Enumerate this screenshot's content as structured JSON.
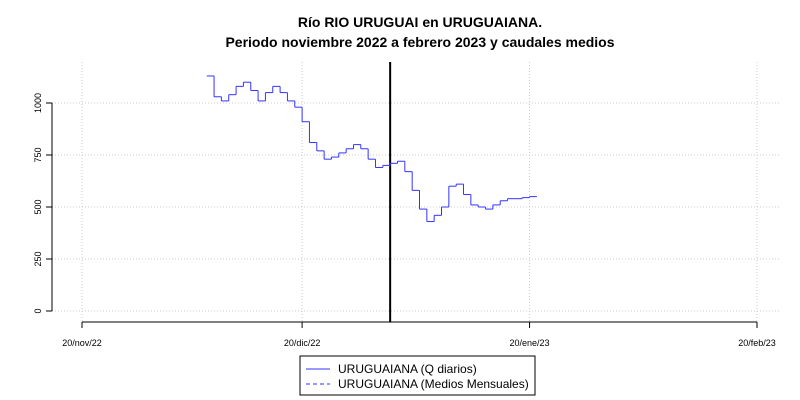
{
  "chart_data": {
    "type": "line",
    "title": "Río RIO URUGUAI en URUGUAIANA.",
    "subtitle": "Periodo noviembre 2022 a febrero 2023 y caudales medios",
    "xlabel": "",
    "ylabel": "",
    "xlim": [
      "2022-11-20",
      "2023-02-20"
    ],
    "ylim": [
      0,
      1150
    ],
    "x_ticks": [
      "20/nov/22",
      "20/dic/22",
      "20/ene/23",
      "20/feb/23"
    ],
    "x_tick_dates": [
      "2022-11-20",
      "2022-12-20",
      "2023-01-20",
      "2023-02-20"
    ],
    "y_ticks": [
      0,
      250,
      500,
      750,
      1000
    ],
    "grid": true,
    "legend_position": "bottom",
    "vline_date": "2023-01-01",
    "colors": {
      "daily": "#3333ff",
      "monthly": "#3333ff",
      "vline": "#000000"
    },
    "series": [
      {
        "name": "URUGUAIANA (Q diarios)",
        "style": "step",
        "x": [
          "2022-12-07",
          "2022-12-08",
          "2022-12-09",
          "2022-12-10",
          "2022-12-11",
          "2022-12-12",
          "2022-12-13",
          "2022-12-14",
          "2022-12-15",
          "2022-12-16",
          "2022-12-17",
          "2022-12-18",
          "2022-12-19",
          "2022-12-20",
          "2022-12-21",
          "2022-12-22",
          "2022-12-23",
          "2022-12-24",
          "2022-12-25",
          "2022-12-26",
          "2022-12-27",
          "2022-12-28",
          "2022-12-29",
          "2022-12-30",
          "2022-12-31",
          "2023-01-01",
          "2023-01-02",
          "2023-01-03",
          "2023-01-04",
          "2023-01-05",
          "2023-01-06",
          "2023-01-07",
          "2023-01-08",
          "2023-01-09",
          "2023-01-10",
          "2023-01-11",
          "2023-01-12",
          "2023-01-13",
          "2023-01-14",
          "2023-01-15",
          "2023-01-16",
          "2023-01-17",
          "2023-01-18",
          "2023-01-19",
          "2023-01-20"
        ],
        "values": [
          1130,
          1030,
          1010,
          1040,
          1080,
          1100,
          1060,
          1010,
          1050,
          1080,
          1050,
          1010,
          980,
          910,
          810,
          770,
          730,
          740,
          760,
          780,
          800,
          780,
          730,
          690,
          700,
          710,
          720,
          670,
          580,
          490,
          430,
          460,
          500,
          600,
          610,
          560,
          510,
          500,
          490,
          510,
          530,
          540,
          540,
          545,
          550
        ]
      },
      {
        "name": "URUGUAIANA (Medios Mensuales)",
        "style": "dashed",
        "x": [],
        "values": []
      }
    ]
  }
}
